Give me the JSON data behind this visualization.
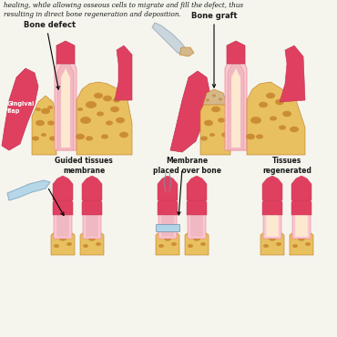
{
  "bg_color": "#f5f5ee",
  "title_text": "healing, while allowing osseous cells to migrate and fill the defect, thus\nresulting in direct bone regeneration and deposition.",
  "labels": {
    "bone_defect": "Bone defect",
    "gingival_flap": "Gingival\nflap",
    "bone_graft": "Bone graft",
    "guided_tissues": "Guided tissues\nmembrane",
    "membrane_placed": "Membrane\nplaced over bone",
    "tissues_regenerated": "Tissues\nregenerated"
  },
  "colors": {
    "bone_yellow": "#daa520",
    "bone_light": "#e8c060",
    "bone_orange": "#d4900a",
    "bone_spots": "#c07820",
    "gum_red": "#e04060",
    "gum_pink": "#f08090",
    "gum_light": "#f8c8d0",
    "tooth_cream": "#fde8d0",
    "tooth_pink": "#f0b8c0",
    "tooth_dark": "#e890a0",
    "membrane_blue": "#b0d4e8",
    "membrane_light": "#d0e8f4",
    "graft_tan": "#d4b888",
    "spatula_gray": "#c8d4dc",
    "text_dark": "#1a1a1a",
    "white": "#ffffff"
  }
}
